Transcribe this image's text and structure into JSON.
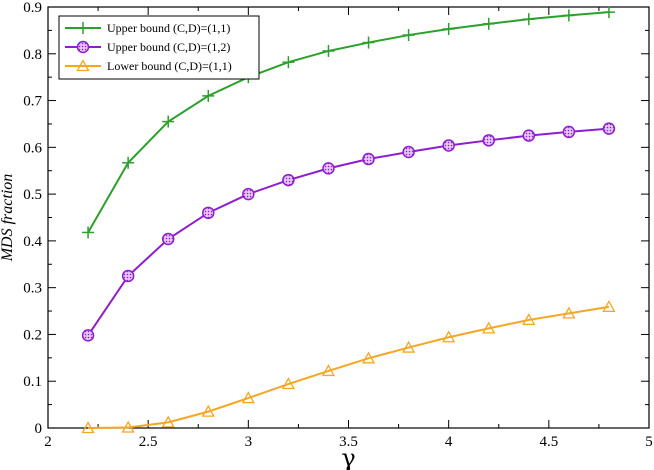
{
  "chart_data": {
    "type": "line",
    "xlabel": "γ",
    "ylabel": "MDS fraction",
    "xlim": [
      2,
      5
    ],
    "ylim": [
      0,
      0.9
    ],
    "xticks": [
      2,
      2.5,
      3,
      3.5,
      4,
      4.5,
      5
    ],
    "xtick_labels": [
      "2",
      "2.5",
      "3",
      "3.5",
      "4",
      "4.5",
      "5"
    ],
    "yticks": [
      0,
      0.1,
      0.2,
      0.3,
      0.4,
      0.5,
      0.6,
      0.7,
      0.8,
      0.9
    ],
    "ytick_labels": [
      "0",
      "0.1",
      "0.2",
      "0.3",
      "0.4",
      "0.5",
      "0.6",
      "0.7",
      "0.8",
      "0.9"
    ],
    "grid": false,
    "legend_position": "top-left",
    "x": [
      2.2,
      2.4,
      2.6,
      2.8,
      3.0,
      3.2,
      3.4,
      3.6,
      3.8,
      4.0,
      4.2,
      4.4,
      4.6,
      4.8
    ],
    "series": [
      {
        "name": "Upper bound (C,D)=(1,1)",
        "color": "#2ca02c",
        "marker": "plus",
        "values": [
          0.418,
          0.567,
          0.655,
          0.71,
          0.75,
          0.782,
          0.806,
          0.824,
          0.84,
          0.853,
          0.864,
          0.874,
          0.882,
          0.889
        ]
      },
      {
        "name": "Upper bound (C,D)=(1,2)",
        "color": "#8e1dcf",
        "marker": "circle",
        "values": [
          0.198,
          0.325,
          0.404,
          0.46,
          0.5,
          0.53,
          0.555,
          0.575,
          0.59,
          0.604,
          0.615,
          0.625,
          0.633,
          0.64
        ]
      },
      {
        "name": "Lower bound (C,D)=(1,1)",
        "color": "#f5a623",
        "marker": "triangle",
        "values": [
          0.0,
          0.001,
          0.012,
          0.035,
          0.064,
          0.094,
          0.122,
          0.149,
          0.172,
          0.194,
          0.213,
          0.231,
          0.245,
          0.259
        ]
      }
    ]
  }
}
